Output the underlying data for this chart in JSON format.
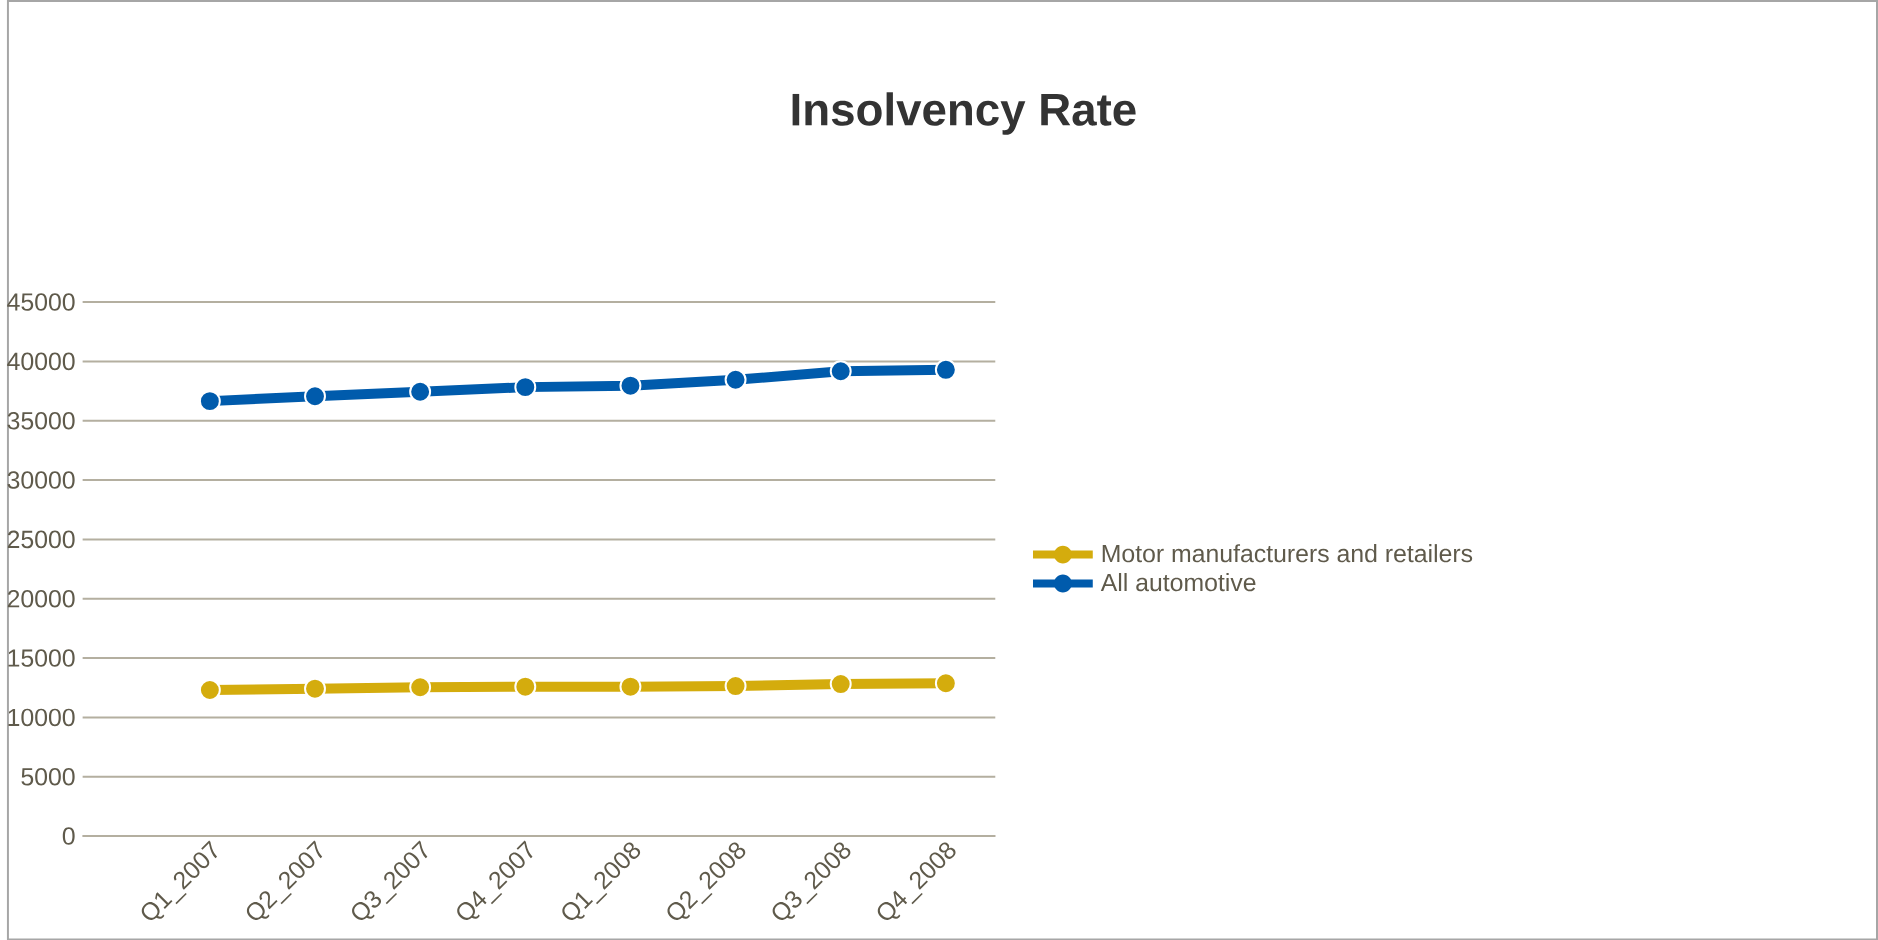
{
  "chart_data": {
    "type": "line",
    "title": "Insolvency Rate",
    "categories": [
      "Q1_2007",
      "Q2_2007",
      "Q3_2007",
      "Q4_2007",
      "Q1_2008",
      "Q2_2008",
      "Q3_2008",
      "Q4_2008"
    ],
    "series": [
      {
        "name": "Motor manufacturers and retailers",
        "color": "#d4ac0d",
        "values": [
          12310,
          12420,
          12540,
          12590,
          12590,
          12640,
          12810,
          12880
        ]
      },
      {
        "name": "All automotive",
        "color": "#005bac",
        "values": [
          36650,
          37060,
          37440,
          37830,
          37950,
          38450,
          39170,
          39290
        ]
      }
    ],
    "ylim": [
      0,
      45000
    ],
    "yticks": [
      0,
      5000,
      10000,
      15000,
      20000,
      25000,
      30000,
      35000,
      40000,
      45000
    ],
    "grid": "y",
    "legend": "right",
    "marker": "circle",
    "line_style": "solid"
  }
}
